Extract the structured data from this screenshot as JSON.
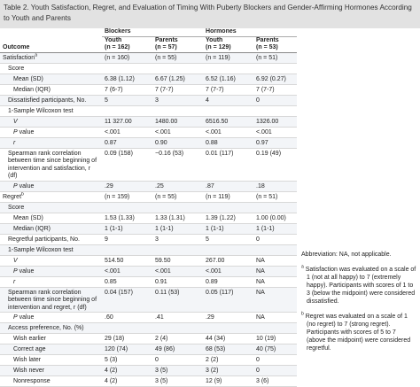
{
  "table": {
    "title": "Table 2. Youth Satisfaction, Regret, and Evaluation of Timing With Puberty Blockers and Gender-Affirming Hormones According to Youth and Parents",
    "outcome_header": "Outcome",
    "groups": [
      "Blockers",
      "Hormones"
    ],
    "columns": [
      {
        "label": "Youth",
        "n": "(n = 162)"
      },
      {
        "label": "Parents",
        "n": "(n = 57)"
      },
      {
        "label": "Youth",
        "n": "(n = 129)"
      },
      {
        "label": "Parents",
        "n": "(n = 53)"
      }
    ],
    "rows": [
      {
        "label": "Satisfaction",
        "note": "a",
        "values": [
          "(n = 160)",
          "(n = 55)",
          "(n = 119)",
          "(n = 51)"
        ]
      },
      {
        "label": "Score"
      },
      {
        "label": "Mean (SD)",
        "values": [
          "6.38 (1.12)",
          "6.67 (1.25)",
          "6.52 (1.16)",
          "6.92 (0.27)"
        ]
      },
      {
        "label": "Median (IQR)",
        "values": [
          "7 (6-7)",
          "7 (7-7)",
          "7 (7-7)",
          "7 (7-7)"
        ]
      },
      {
        "label": "Dissatisfied participants, No.",
        "values": [
          "5",
          "3",
          "4",
          "0"
        ]
      },
      {
        "label": "1-Sample Wilcoxon test"
      },
      {
        "label": "V",
        "values": [
          "11 327.00",
          "1480.00",
          "6516.50",
          "1326.00"
        ]
      },
      {
        "label": "P value",
        "values": [
          "<.001",
          "<.001",
          "<.001",
          "<.001"
        ]
      },
      {
        "label": "r",
        "values": [
          "0.87",
          "0.90",
          "0.88",
          "0.97"
        ]
      },
      {
        "label": "Spearman rank correlation between time since beginning of intervention and satisfaction, r (df)",
        "values": [
          "0.09 (158)",
          "−0.16 (53)",
          "0.01 (117)",
          "0.19 (49)"
        ]
      },
      {
        "label": "P value",
        "values": [
          ".29",
          ".25",
          ".87",
          ".18"
        ]
      },
      {
        "label": "Regret",
        "note": "b",
        "values": [
          "(n = 159)",
          "(n = 55)",
          "(n = 119)",
          "(n = 51)"
        ]
      },
      {
        "label": "Score"
      },
      {
        "label": "Mean (SD)",
        "values": [
          "1.53 (1.33)",
          "1.33 (1.31)",
          "1.39 (1.22)",
          "1.00 (0.00)"
        ]
      },
      {
        "label": "Median (IQR)",
        "values": [
          "1 (1-1)",
          "1 (1-1)",
          "1 (1-1)",
          "1 (1-1)"
        ]
      },
      {
        "label": "Regretful participants, No.",
        "values": [
          "9",
          "3",
          "5",
          "0"
        ]
      },
      {
        "label": "1-Sample Wilcoxon test"
      },
      {
        "label": "V",
        "values": [
          "514.50",
          "59.50",
          "267.00",
          "NA"
        ]
      },
      {
        "label": "P value",
        "values": [
          "<.001",
          "<.001",
          "<.001",
          "NA"
        ]
      },
      {
        "label": "r",
        "values": [
          "0.85",
          "0.91",
          "0.89",
          "NA"
        ]
      },
      {
        "label": "Spearman rank correlation between time since beginning of intervention and regret, r (df)",
        "values": [
          "0.04 (157)",
          "0.11 (53)",
          "0.05 (117)",
          "NA"
        ]
      },
      {
        "label": "P value",
        "values": [
          ".60",
          ".41",
          ".29",
          "NA"
        ]
      },
      {
        "label": "Access preference, No. (%)"
      },
      {
        "label": "Wish earlier",
        "values": [
          "29 (18)",
          "2 (4)",
          "44 (34)",
          "10 (19)"
        ]
      },
      {
        "label": "Correct age",
        "values": [
          "120 (74)",
          "49 (86)",
          "68 (53)",
          "40 (75)"
        ]
      },
      {
        "label": "Wish later",
        "values": [
          "5 (3)",
          "0",
          "2 (2)",
          "0"
        ]
      },
      {
        "label": "Wish never",
        "values": [
          "4 (2)",
          "3 (5)",
          "3 (2)",
          "0"
        ]
      },
      {
        "label": "Nonresponse",
        "values": [
          "4 (2)",
          "3 (5)",
          "12 (9)",
          "3 (6)"
        ]
      }
    ]
  },
  "footnotes": {
    "abbreviation": "Abbreviation: NA, not applicable.",
    "notes": [
      {
        "mark": "a",
        "text": "Satisfaction was evaluated on a scale of 1 (not at all happy) to 7 (extremely happy). Participants with scores of 1 to 3 (below the midpoint) were considered dissatisfied."
      },
      {
        "mark": "b",
        "text": "Regret was evaluated on a scale of 1 (no regret) to 7 (strong regret). Participants with scores of 5 to 7 (above the midpoint) were considered regretful."
      }
    ]
  }
}
